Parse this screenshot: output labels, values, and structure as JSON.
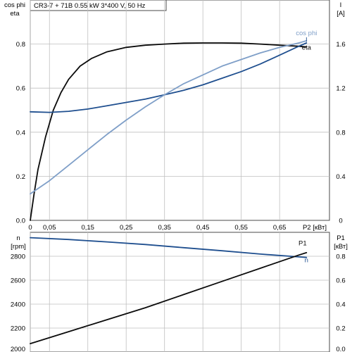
{
  "title": "CR3-7 + 71B   0.55 kW   3*400 V, 50 Hz",
  "colors": {
    "background": "#ffffff",
    "frame": "#4a4a4a",
    "grid": "#bfbfbf",
    "text": "#000000",
    "eta": "#0b0b0b",
    "current": "#1f4f8f",
    "cos_phi": "#7f9fc8",
    "speed": "#1f4f8f",
    "p1": "#0b0b0b"
  },
  "chart_data": [
    {
      "type": "line",
      "panel": "top",
      "title": "CR3-7 + 71B   0.55 kW   3*400 V, 50 Hz",
      "xlabel": "P2 [кВт]",
      "xlim": [
        0,
        0.78
      ],
      "x_ticks": [
        0,
        0.05,
        0.15,
        0.25,
        0.35,
        0.45,
        0.55,
        0.65
      ],
      "x_tick_labels": [
        "0",
        "0,05",
        "0,15",
        "0,25",
        "0,35",
        "0,45",
        "0,55",
        "0,65"
      ],
      "y_left": {
        "label_lines": [
          "cos phi",
          "eta"
        ],
        "lim": [
          0,
          1.0
        ],
        "ticks": [
          0,
          0.2,
          0.4,
          0.6,
          0.8
        ],
        "tick_labels": [
          "0.0",
          "0.2",
          "0.4",
          "0.6",
          "0.8"
        ]
      },
      "y_right": {
        "label_lines": [
          "I",
          "[A]"
        ],
        "lim": [
          0,
          2.0
        ],
        "ticks": [
          0,
          0.4,
          0.8,
          1.2,
          1.6
        ],
        "tick_labels": [
          "0",
          "0.4",
          "0.8",
          "1.2",
          "1.6"
        ]
      },
      "grid": true,
      "series": [
        {
          "name": "eta",
          "axis": "left",
          "color_key": "eta",
          "x": [
            0,
            0.01,
            0.02,
            0.04,
            0.06,
            0.08,
            0.1,
            0.13,
            0.16,
            0.2,
            0.25,
            0.3,
            0.35,
            0.4,
            0.45,
            0.5,
            0.55,
            0.6,
            0.65,
            0.7,
            0.72
          ],
          "y": [
            0,
            0.12,
            0.23,
            0.38,
            0.5,
            0.58,
            0.64,
            0.7,
            0.735,
            0.765,
            0.785,
            0.795,
            0.8,
            0.804,
            0.805,
            0.805,
            0.804,
            0.8,
            0.795,
            0.79,
            0.787
          ],
          "label_anchor": [
            0.72,
            0.775
          ]
        },
        {
          "name": "I",
          "axis": "right",
          "color_key": "current",
          "x": [
            0,
            0.05,
            0.1,
            0.15,
            0.2,
            0.25,
            0.3,
            0.35,
            0.4,
            0.45,
            0.5,
            0.55,
            0.6,
            0.65,
            0.7,
            0.72
          ],
          "y": [
            0.985,
            0.98,
            0.99,
            1.01,
            1.04,
            1.07,
            1.1,
            1.14,
            1.18,
            1.23,
            1.29,
            1.35,
            1.42,
            1.5,
            1.58,
            1.61
          ],
          "label_anchor": [
            0.72,
            1.62
          ]
        },
        {
          "name": "cos phi",
          "axis": "left",
          "color_key": "cos_phi",
          "x": [
            0,
            0.05,
            0.1,
            0.15,
            0.2,
            0.25,
            0.3,
            0.35,
            0.4,
            0.45,
            0.5,
            0.55,
            0.6,
            0.65,
            0.7,
            0.72
          ],
          "y": [
            0.12,
            0.18,
            0.25,
            0.32,
            0.39,
            0.455,
            0.515,
            0.57,
            0.62,
            0.66,
            0.7,
            0.73,
            0.76,
            0.785,
            0.805,
            0.815
          ],
          "label_anchor": [
            0.72,
            0.84
          ]
        }
      ]
    },
    {
      "type": "line",
      "panel": "bottom",
      "xlim": [
        0,
        0.78
      ],
      "x_ticks": [
        0,
        0.05,
        0.15,
        0.25,
        0.35,
        0.45,
        0.55,
        0.65
      ],
      "y_left": {
        "label_lines": [
          "n",
          "[rpm]"
        ],
        "lim": [
          2000,
          3000
        ],
        "ticks": [
          2000,
          2200,
          2400,
          2600,
          2800
        ],
        "tick_labels": [
          "2000",
          "2200",
          "2400",
          "2600",
          "2800"
        ]
      },
      "y_right": {
        "label_lines": [
          "P1",
          "[кВт]"
        ],
        "lim": [
          0,
          1.0
        ],
        "ticks": [
          0,
          0.2,
          0.4,
          0.6,
          0.8
        ],
        "tick_labels": [
          "0.0",
          "0.2",
          "0.4",
          "0.6",
          "0.8"
        ]
      },
      "grid": true,
      "series": [
        {
          "name": "n",
          "axis": "left",
          "color_key": "speed",
          "x": [
            0,
            0.1,
            0.2,
            0.3,
            0.4,
            0.5,
            0.6,
            0.7,
            0.72
          ],
          "y": [
            2955,
            2940,
            2920,
            2898,
            2872,
            2846,
            2818,
            2795,
            2790
          ],
          "label_anchor": [
            0.72,
            2750
          ]
        },
        {
          "name": "P1",
          "axis": "right",
          "color_key": "p1",
          "x": [
            0,
            0.1,
            0.2,
            0.3,
            0.4,
            0.5,
            0.6,
            0.7,
            0.72
          ],
          "y": [
            0.07,
            0.17,
            0.27,
            0.37,
            0.48,
            0.59,
            0.7,
            0.81,
            0.83
          ],
          "label_anchor": [
            0.71,
            0.89
          ]
        }
      ]
    }
  ]
}
